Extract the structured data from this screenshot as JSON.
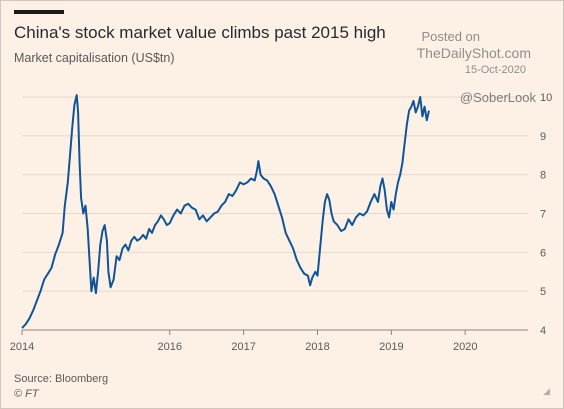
{
  "header": {
    "title": "China's stock market value climbs past 2015 high",
    "subtitle": "Market capitalisation (US$tn)"
  },
  "watermark": {
    "posted": "Posted on",
    "site": "TheDailyShot.com",
    "date": "15-Oct-2020",
    "handle": "@SoberLook"
  },
  "footer": {
    "source": "Source: Bloomberg",
    "publisher": "© FT"
  },
  "colors": {
    "background": "#fdf1e5",
    "line": "#0f5499",
    "grid": "#e6d9cc"
  },
  "chart_data": {
    "type": "line",
    "title": "China's stock market value climbs past 2015 high",
    "ylabel": "Market capitalisation (US$tn)",
    "xlabel": "",
    "ylim": [
      4,
      10
    ],
    "xlim": [
      2014.0,
      2020.85
    ],
    "yticks": [
      "4",
      "5",
      "6",
      "7",
      "8",
      "9",
      "10"
    ],
    "xticks": [
      {
        "label": "2014",
        "value": 2014.0
      },
      {
        "label": "2016",
        "value": 2016.0
      },
      {
        "label": "2017",
        "value": 2017.0
      },
      {
        "label": "2018",
        "value": 2018.0
      },
      {
        "label": "2019",
        "value": 2019.0
      },
      {
        "label": "2020",
        "value": 2020.0
      }
    ],
    "grid": true,
    "axis_side": "right",
    "series": [
      {
        "values": [
          [
            2014.0,
            4.05
          ],
          [
            2014.05,
            4.15
          ],
          [
            2014.1,
            4.3
          ],
          [
            2014.15,
            4.5
          ],
          [
            2014.2,
            4.75
          ],
          [
            2014.25,
            5.0
          ],
          [
            2014.3,
            5.3
          ],
          [
            2014.35,
            5.45
          ],
          [
            2014.4,
            5.6
          ],
          [
            2014.45,
            5.95
          ],
          [
            2014.5,
            6.2
          ],
          [
            2014.55,
            6.5
          ],
          [
            2014.58,
            7.2
          ],
          [
            2014.62,
            7.8
          ],
          [
            2014.65,
            8.5
          ],
          [
            2014.68,
            9.2
          ],
          [
            2014.71,
            9.8
          ],
          [
            2014.74,
            10.05
          ],
          [
            2014.76,
            9.6
          ],
          [
            2014.78,
            8.3
          ],
          [
            2014.8,
            7.4
          ],
          [
            2014.83,
            7.0
          ],
          [
            2014.86,
            7.2
          ],
          [
            2014.89,
            6.6
          ],
          [
            2014.92,
            5.6
          ],
          [
            2014.94,
            5.0
          ],
          [
            2014.97,
            5.35
          ],
          [
            2015.0,
            4.95
          ],
          [
            2015.03,
            5.5
          ],
          [
            2015.06,
            6.2
          ],
          [
            2015.09,
            6.55
          ],
          [
            2015.12,
            6.7
          ],
          [
            2015.15,
            6.3
          ],
          [
            2015.17,
            5.5
          ],
          [
            2015.2,
            5.1
          ],
          [
            2015.24,
            5.3
          ],
          [
            2015.28,
            5.9
          ],
          [
            2015.32,
            5.8
          ],
          [
            2015.36,
            6.1
          ],
          [
            2015.4,
            6.2
          ],
          [
            2015.44,
            6.05
          ],
          [
            2015.48,
            6.3
          ],
          [
            2015.52,
            6.4
          ],
          [
            2015.56,
            6.3
          ],
          [
            2015.6,
            6.35
          ],
          [
            2015.64,
            6.45
          ],
          [
            2015.68,
            6.35
          ],
          [
            2015.72,
            6.6
          ],
          [
            2015.76,
            6.5
          ],
          [
            2015.8,
            6.7
          ],
          [
            2015.84,
            6.8
          ],
          [
            2015.88,
            6.95
          ],
          [
            2015.92,
            6.85
          ],
          [
            2015.96,
            6.7
          ],
          [
            2016.0,
            6.75
          ],
          [
            2016.05,
            6.95
          ],
          [
            2016.1,
            7.1
          ],
          [
            2016.15,
            7.0
          ],
          [
            2016.2,
            7.2
          ],
          [
            2016.25,
            7.25
          ],
          [
            2016.3,
            7.15
          ],
          [
            2016.35,
            7.1
          ],
          [
            2016.4,
            6.85
          ],
          [
            2016.45,
            6.95
          ],
          [
            2016.5,
            6.8
          ],
          [
            2016.55,
            6.9
          ],
          [
            2016.6,
            7.0
          ],
          [
            2016.65,
            7.05
          ],
          [
            2016.7,
            7.2
          ],
          [
            2016.75,
            7.3
          ],
          [
            2016.8,
            7.5
          ],
          [
            2016.85,
            7.45
          ],
          [
            2016.9,
            7.6
          ],
          [
            2016.95,
            7.8
          ],
          [
            2017.0,
            7.75
          ],
          [
            2017.05,
            7.8
          ],
          [
            2017.1,
            7.9
          ],
          [
            2017.15,
            7.85
          ],
          [
            2017.18,
            8.1
          ],
          [
            2017.2,
            8.35
          ],
          [
            2017.23,
            8.0
          ],
          [
            2017.27,
            7.9
          ],
          [
            2017.32,
            7.85
          ],
          [
            2017.37,
            7.7
          ],
          [
            2017.42,
            7.5
          ],
          [
            2017.47,
            7.2
          ],
          [
            2017.52,
            6.9
          ],
          [
            2017.57,
            6.5
          ],
          [
            2017.62,
            6.3
          ],
          [
            2017.67,
            6.1
          ],
          [
            2017.72,
            5.8
          ],
          [
            2017.77,
            5.6
          ],
          [
            2017.82,
            5.45
          ],
          [
            2017.87,
            5.4
          ],
          [
            2017.9,
            5.15
          ],
          [
            2017.93,
            5.35
          ],
          [
            2017.97,
            5.5
          ],
          [
            2018.0,
            5.4
          ],
          [
            2018.03,
            6.0
          ],
          [
            2018.07,
            6.8
          ],
          [
            2018.1,
            7.3
          ],
          [
            2018.13,
            7.5
          ],
          [
            2018.16,
            7.35
          ],
          [
            2018.19,
            7.0
          ],
          [
            2018.22,
            6.8
          ],
          [
            2018.27,
            6.7
          ],
          [
            2018.32,
            6.55
          ],
          [
            2018.37,
            6.6
          ],
          [
            2018.42,
            6.85
          ],
          [
            2018.47,
            6.7
          ],
          [
            2018.52,
            6.9
          ],
          [
            2018.57,
            7.0
          ],
          [
            2018.62,
            6.95
          ],
          [
            2018.67,
            7.05
          ],
          [
            2018.72,
            7.3
          ],
          [
            2018.77,
            7.5
          ],
          [
            2018.82,
            7.3
          ],
          [
            2018.85,
            7.7
          ],
          [
            2018.88,
            7.9
          ],
          [
            2018.91,
            7.6
          ],
          [
            2018.94,
            7.1
          ],
          [
            2018.97,
            6.9
          ],
          [
            2019.0,
            7.3
          ],
          [
            2019.03,
            7.1
          ],
          [
            2019.06,
            7.5
          ],
          [
            2019.09,
            7.8
          ],
          [
            2019.12,
            8.0
          ],
          [
            2019.15,
            8.3
          ],
          [
            2019.18,
            8.8
          ],
          [
            2019.21,
            9.3
          ],
          [
            2019.24,
            9.65
          ],
          [
            2019.27,
            9.75
          ],
          [
            2019.3,
            9.9
          ],
          [
            2019.33,
            9.6
          ],
          [
            2019.36,
            9.75
          ],
          [
            2019.39,
            10.0
          ],
          [
            2019.42,
            9.5
          ],
          [
            2019.45,
            9.75
          ],
          [
            2019.48,
            9.4
          ],
          [
            2019.51,
            9.65
          ]
        ]
      }
    ]
  }
}
